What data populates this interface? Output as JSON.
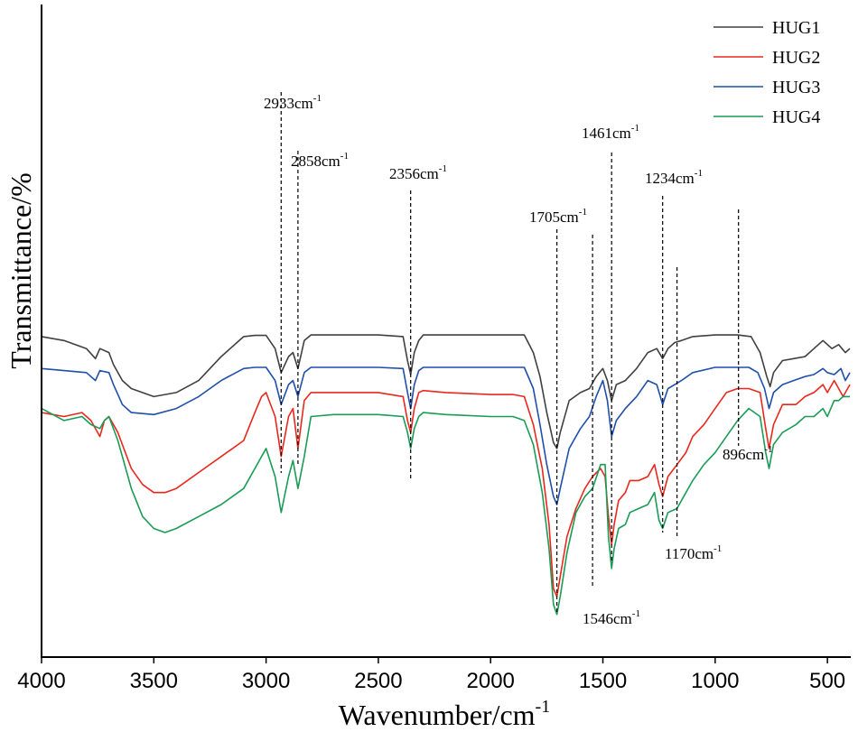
{
  "chart_data": {
    "type": "line",
    "title": "",
    "xlabel": "Wavenumber/cm",
    "xlabel_sup": "-1",
    "ylabel": "Transmittance/%",
    "xlim": [
      4000,
      400
    ],
    "x_reversed": true,
    "ylim": [
      0,
      100
    ],
    "y_ticks_visible": false,
    "x_ticks": [
      4000,
      3500,
      3000,
      2500,
      2000,
      1500,
      1000,
      500
    ],
    "legend": {
      "position": "top-right",
      "entries": [
        "HUG1",
        "HUG2",
        "HUG3",
        "HUG4"
      ]
    },
    "series": [
      {
        "name": "HUG1",
        "color": "#404040",
        "points": [
          [
            4000,
            70
          ],
          [
            3900,
            69
          ],
          [
            3800,
            67
          ],
          [
            3760,
            64.5
          ],
          [
            3740,
            67
          ],
          [
            3700,
            66
          ],
          [
            3680,
            63
          ],
          [
            3640,
            59
          ],
          [
            3600,
            57
          ],
          [
            3500,
            55
          ],
          [
            3400,
            56
          ],
          [
            3300,
            59
          ],
          [
            3200,
            65
          ],
          [
            3100,
            70
          ],
          [
            3050,
            70.3
          ],
          [
            3000,
            70.3
          ],
          [
            2960,
            67
          ],
          [
            2933,
            61
          ],
          [
            2900,
            65
          ],
          [
            2880,
            66
          ],
          [
            2858,
            62
          ],
          [
            2830,
            69
          ],
          [
            2800,
            70.4
          ],
          [
            2500,
            70.4
          ],
          [
            2390,
            70
          ],
          [
            2370,
            64
          ],
          [
            2356,
            60.5
          ],
          [
            2340,
            66
          ],
          [
            2320,
            69
          ],
          [
            2300,
            70.4
          ],
          [
            2000,
            70.4
          ],
          [
            1850,
            70.4
          ],
          [
            1810,
            66
          ],
          [
            1780,
            60
          ],
          [
            1750,
            51
          ],
          [
            1720,
            43.5
          ],
          [
            1705,
            42
          ],
          [
            1690,
            46
          ],
          [
            1650,
            54
          ],
          [
            1600,
            56
          ],
          [
            1560,
            57
          ],
          [
            1530,
            60
          ],
          [
            1500,
            62
          ],
          [
            1480,
            59
          ],
          [
            1461,
            54
          ],
          [
            1440,
            58
          ],
          [
            1400,
            59
          ],
          [
            1350,
            62
          ],
          [
            1300,
            66
          ],
          [
            1260,
            67
          ],
          [
            1234,
            64.5
          ],
          [
            1210,
            67
          ],
          [
            1180,
            68.5
          ],
          [
            1150,
            69
          ],
          [
            1100,
            70
          ],
          [
            1000,
            70.4
          ],
          [
            900,
            70.4
          ],
          [
            840,
            70
          ],
          [
            800,
            66
          ],
          [
            770,
            60
          ],
          [
            755,
            57.5
          ],
          [
            740,
            61
          ],
          [
            700,
            64
          ],
          [
            650,
            64.5
          ],
          [
            600,
            65
          ],
          [
            560,
            67
          ],
          [
            520,
            69
          ],
          [
            480,
            67
          ],
          [
            450,
            68
          ],
          [
            420,
            66
          ],
          [
            400,
            67
          ]
        ]
      },
      {
        "name": "HUG2",
        "color": "#e8281c",
        "points": [
          [
            4000,
            51
          ],
          [
            3900,
            50
          ],
          [
            3820,
            51
          ],
          [
            3780,
            49
          ],
          [
            3740,
            45
          ],
          [
            3720,
            49
          ],
          [
            3700,
            50
          ],
          [
            3660,
            46
          ],
          [
            3600,
            37
          ],
          [
            3550,
            33
          ],
          [
            3500,
            31
          ],
          [
            3450,
            31
          ],
          [
            3400,
            32
          ],
          [
            3300,
            36
          ],
          [
            3200,
            40
          ],
          [
            3100,
            44
          ],
          [
            3050,
            51
          ],
          [
            3020,
            55
          ],
          [
            3000,
            56
          ],
          [
            2960,
            50
          ],
          [
            2933,
            40
          ],
          [
            2900,
            50
          ],
          [
            2880,
            52
          ],
          [
            2858,
            42
          ],
          [
            2830,
            54
          ],
          [
            2800,
            56
          ],
          [
            2500,
            56
          ],
          [
            2390,
            55
          ],
          [
            2370,
            49
          ],
          [
            2356,
            46
          ],
          [
            2340,
            52
          ],
          [
            2320,
            56
          ],
          [
            2300,
            56.5
          ],
          [
            2200,
            56
          ],
          [
            2000,
            55.5
          ],
          [
            1900,
            55.5
          ],
          [
            1850,
            55
          ],
          [
            1810,
            48
          ],
          [
            1770,
            37
          ],
          [
            1740,
            23
          ],
          [
            1720,
            7
          ],
          [
            1705,
            5
          ],
          [
            1690,
            10
          ],
          [
            1660,
            20
          ],
          [
            1620,
            27
          ],
          [
            1580,
            32
          ],
          [
            1546,
            35
          ],
          [
            1510,
            37
          ],
          [
            1490,
            35
          ],
          [
            1475,
            25
          ],
          [
            1461,
            18
          ],
          [
            1450,
            23
          ],
          [
            1430,
            29
          ],
          [
            1400,
            31
          ],
          [
            1380,
            34
          ],
          [
            1340,
            34
          ],
          [
            1300,
            35
          ],
          [
            1270,
            38
          ],
          [
            1250,
            33
          ],
          [
            1234,
            30
          ],
          [
            1210,
            35
          ],
          [
            1170,
            38
          ],
          [
            1130,
            41
          ],
          [
            1100,
            45
          ],
          [
            1050,
            48
          ],
          [
            1000,
            52
          ],
          [
            950,
            56
          ],
          [
            900,
            57
          ],
          [
            850,
            57
          ],
          [
            800,
            56
          ],
          [
            775,
            47
          ],
          [
            760,
            42
          ],
          [
            740,
            48
          ],
          [
            700,
            53
          ],
          [
            640,
            53
          ],
          [
            600,
            55
          ],
          [
            560,
            56
          ],
          [
            520,
            58
          ],
          [
            500,
            56
          ],
          [
            470,
            59
          ],
          [
            450,
            57
          ],
          [
            430,
            55
          ],
          [
            400,
            58
          ]
        ]
      },
      {
        "name": "HUG3",
        "color": "#1f4faa",
        "points": [
          [
            4000,
            62
          ],
          [
            3900,
            61.5
          ],
          [
            3800,
            61
          ],
          [
            3760,
            59
          ],
          [
            3740,
            61.5
          ],
          [
            3700,
            61
          ],
          [
            3680,
            58
          ],
          [
            3640,
            53
          ],
          [
            3600,
            51
          ],
          [
            3500,
            50.5
          ],
          [
            3400,
            52
          ],
          [
            3300,
            55
          ],
          [
            3200,
            59
          ],
          [
            3100,
            62
          ],
          [
            3050,
            62.3
          ],
          [
            3000,
            62.3
          ],
          [
            2960,
            59
          ],
          [
            2933,
            53
          ],
          [
            2900,
            58
          ],
          [
            2880,
            59
          ],
          [
            2858,
            55
          ],
          [
            2830,
            61
          ],
          [
            2800,
            62.3
          ],
          [
            2500,
            62.3
          ],
          [
            2390,
            62
          ],
          [
            2370,
            56
          ],
          [
            2356,
            52
          ],
          [
            2340,
            58
          ],
          [
            2320,
            61.5
          ],
          [
            2300,
            62.3
          ],
          [
            2000,
            62.3
          ],
          [
            1850,
            62.3
          ],
          [
            1810,
            57
          ],
          [
            1780,
            48
          ],
          [
            1750,
            38
          ],
          [
            1720,
            30
          ],
          [
            1705,
            28
          ],
          [
            1690,
            32
          ],
          [
            1650,
            42
          ],
          [
            1600,
            47
          ],
          [
            1560,
            50
          ],
          [
            1530,
            55
          ],
          [
            1500,
            59
          ],
          [
            1480,
            54
          ],
          [
            1461,
            45
          ],
          [
            1440,
            49
          ],
          [
            1400,
            52
          ],
          [
            1350,
            55
          ],
          [
            1300,
            59
          ],
          [
            1260,
            58
          ],
          [
            1234,
            53
          ],
          [
            1210,
            57
          ],
          [
            1180,
            58
          ],
          [
            1150,
            59
          ],
          [
            1100,
            61
          ],
          [
            1000,
            62.3
          ],
          [
            900,
            62.3
          ],
          [
            850,
            62.3
          ],
          [
            810,
            61
          ],
          [
            780,
            57
          ],
          [
            760,
            52
          ],
          [
            740,
            56
          ],
          [
            700,
            58
          ],
          [
            650,
            59
          ],
          [
            600,
            60
          ],
          [
            560,
            60.5
          ],
          [
            520,
            62
          ],
          [
            500,
            61
          ],
          [
            470,
            60.5
          ],
          [
            440,
            62
          ],
          [
            420,
            59
          ],
          [
            400,
            61
          ]
        ]
      },
      {
        "name": "HUG4",
        "color": "#1a9b56",
        "points": [
          [
            4000,
            52
          ],
          [
            3900,
            49
          ],
          [
            3820,
            50
          ],
          [
            3780,
            48
          ],
          [
            3740,
            47
          ],
          [
            3720,
            49
          ],
          [
            3700,
            50
          ],
          [
            3660,
            44
          ],
          [
            3600,
            32
          ],
          [
            3550,
            25
          ],
          [
            3500,
            22
          ],
          [
            3450,
            21
          ],
          [
            3400,
            22
          ],
          [
            3300,
            25
          ],
          [
            3200,
            28
          ],
          [
            3100,
            32
          ],
          [
            3050,
            37
          ],
          [
            3020,
            40
          ],
          [
            3000,
            42
          ],
          [
            2960,
            35
          ],
          [
            2933,
            26
          ],
          [
            2900,
            35
          ],
          [
            2880,
            39
          ],
          [
            2858,
            32
          ],
          [
            2830,
            40
          ],
          [
            2800,
            50
          ],
          [
            2700,
            50.5
          ],
          [
            2500,
            50.5
          ],
          [
            2390,
            50
          ],
          [
            2370,
            46
          ],
          [
            2356,
            42
          ],
          [
            2340,
            47
          ],
          [
            2320,
            50
          ],
          [
            2300,
            51
          ],
          [
            2200,
            50.5
          ],
          [
            2000,
            50
          ],
          [
            1900,
            50
          ],
          [
            1850,
            49
          ],
          [
            1810,
            43
          ],
          [
            1770,
            31
          ],
          [
            1740,
            17
          ],
          [
            1720,
            3
          ],
          [
            1705,
            0.5
          ],
          [
            1690,
            5
          ],
          [
            1660,
            16
          ],
          [
            1620,
            26
          ],
          [
            1580,
            30
          ],
          [
            1546,
            32
          ],
          [
            1510,
            38
          ],
          [
            1490,
            38
          ],
          [
            1475,
            20
          ],
          [
            1461,
            12
          ],
          [
            1450,
            17
          ],
          [
            1430,
            22
          ],
          [
            1400,
            23
          ],
          [
            1380,
            26
          ],
          [
            1340,
            27
          ],
          [
            1300,
            28
          ],
          [
            1270,
            31
          ],
          [
            1250,
            24
          ],
          [
            1234,
            22
          ],
          [
            1210,
            26
          ],
          [
            1170,
            27
          ],
          [
            1130,
            31
          ],
          [
            1100,
            34
          ],
          [
            1050,
            38
          ],
          [
            1000,
            41
          ],
          [
            950,
            45
          ],
          [
            900,
            49
          ],
          [
            850,
            52
          ],
          [
            800,
            50
          ],
          [
            775,
            41
          ],
          [
            760,
            37
          ],
          [
            740,
            43
          ],
          [
            700,
            46
          ],
          [
            640,
            48
          ],
          [
            600,
            50
          ],
          [
            560,
            50
          ],
          [
            520,
            52
          ],
          [
            500,
            50
          ],
          [
            470,
            54
          ],
          [
            450,
            54
          ],
          [
            430,
            55
          ],
          [
            400,
            55
          ]
        ]
      }
    ],
    "annotations": [
      {
        "label": "2933cm",
        "sup": "-1",
        "x": 2933
      },
      {
        "label": "2858cm",
        "sup": "-1",
        "x": 2858
      },
      {
        "label": "2356cm",
        "sup": "-1",
        "x": 2356
      },
      {
        "label": "1705cm",
        "sup": "-1",
        "x": 1705
      },
      {
        "label": "1461cm",
        "sup": "-1",
        "x": 1461
      },
      {
        "label": "1234cm",
        "sup": "-1",
        "x": 1234
      },
      {
        "label": "896cm",
        "sup": "-1",
        "x": 896
      },
      {
        "label": "1546cm",
        "sup": "-1",
        "x": 1546
      },
      {
        "label": "1170cm",
        "sup": "-1",
        "x": 1170
      }
    ]
  }
}
